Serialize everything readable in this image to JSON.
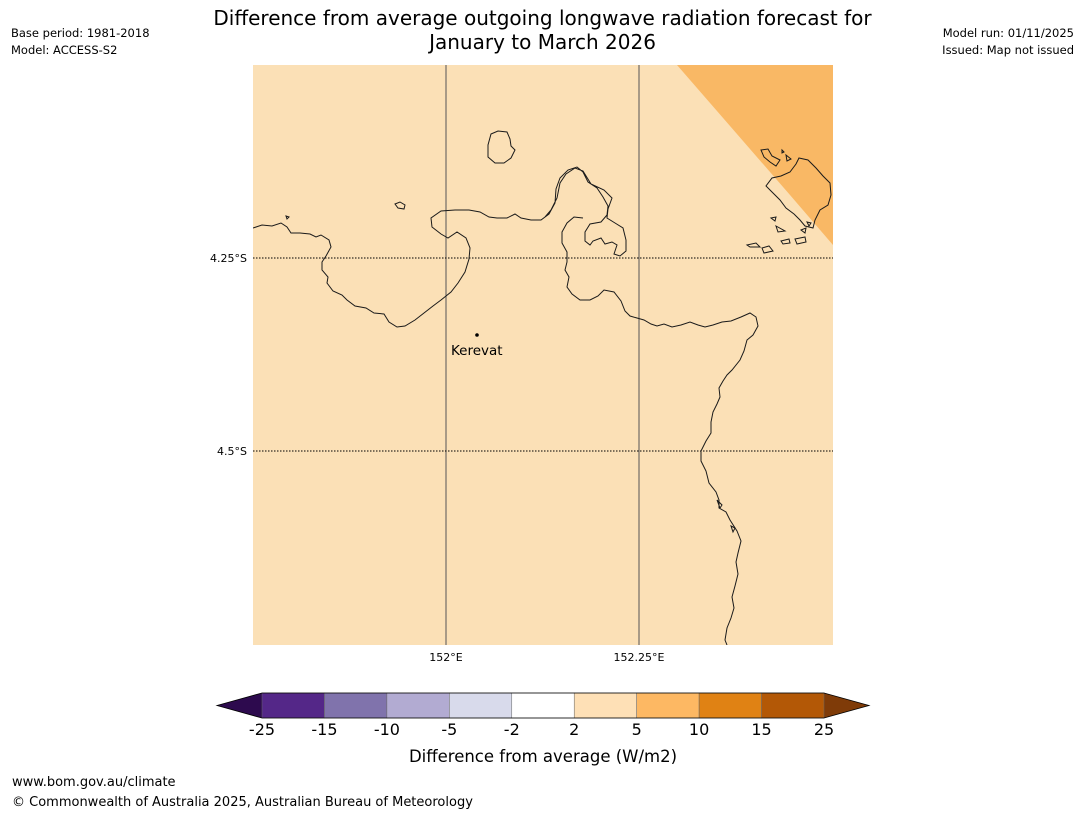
{
  "title": {
    "line1": "Difference from average outgoing longwave radiation forecast for",
    "line2": "January to March 2026"
  },
  "meta_left": {
    "base_period": "Base period: 1981-2018",
    "model": "Model: ACCESS-S2"
  },
  "meta_right": {
    "model_run": "Model run: 01/11/2025",
    "issued": "Issued: Map not issued"
  },
  "map": {
    "lat_labels": [
      "4.25°S",
      "4.5°S"
    ],
    "lon_labels": [
      "152°E",
      "152.25°E"
    ],
    "place": {
      "name": "Kerevat"
    },
    "colors": {
      "base_fill": "#fbe0b6",
      "anomaly_fill": "#f9b865",
      "coastline": "#1a1a1a",
      "gridline": "#555555"
    },
    "anomaly_categories": [
      "2 to 5",
      "5 to 10"
    ]
  },
  "colorbar": {
    "label": "Difference from average (W/m2)",
    "ticks": [
      "-25",
      "-15",
      "-10",
      "-5",
      "-2",
      "2",
      "5",
      "10",
      "15",
      "25"
    ],
    "under_color": "#2d0a4e",
    "over_color": "#7f3b08",
    "colors": [
      "#542788",
      "#8073ac",
      "#b2abd2",
      "#d8daeb",
      "#ffffff",
      "#fee0b6",
      "#fdb863",
      "#e08214",
      "#b35806"
    ]
  },
  "footer": {
    "url": "www.bom.gov.au/climate",
    "copyright": "© Commonwealth of Australia 2025, Australian Bureau of Meteorology"
  }
}
